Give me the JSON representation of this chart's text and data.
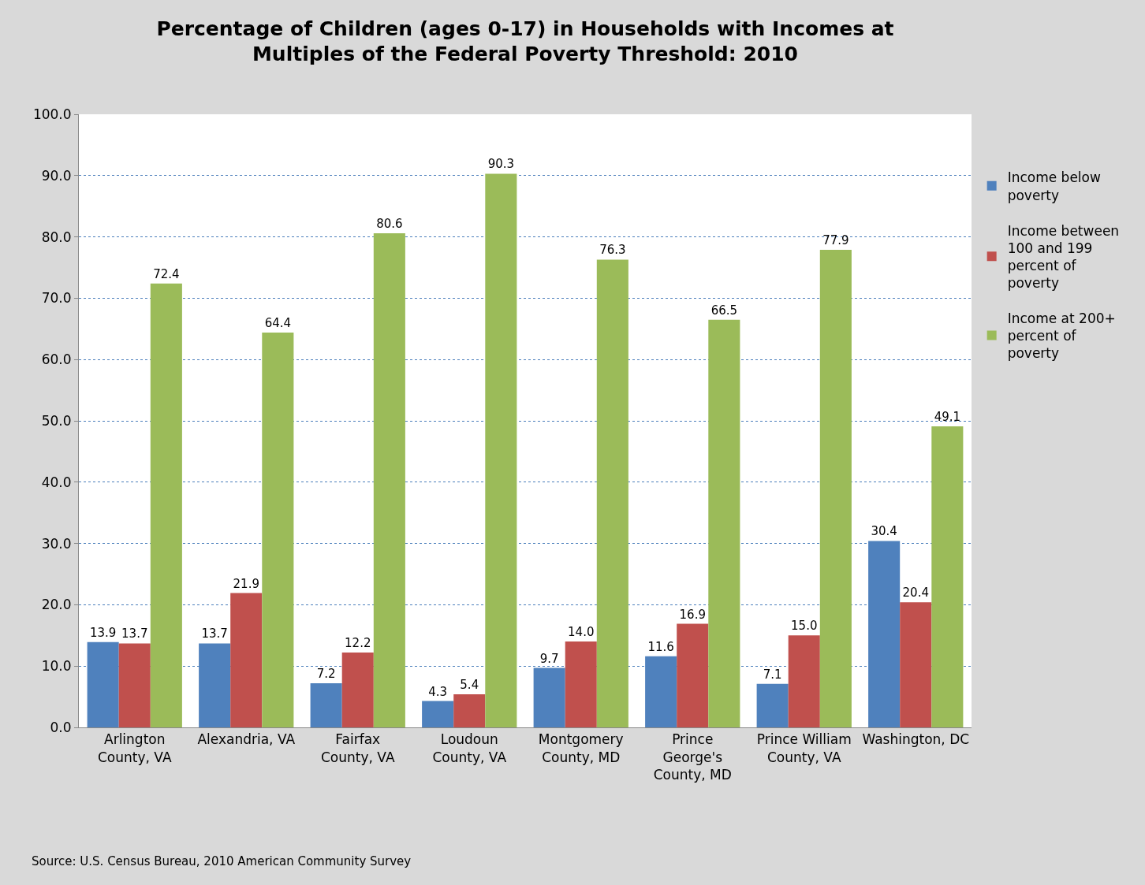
{
  "chart_data": {
    "type": "bar",
    "title": "Percentage of Children (ages 0-17) in Households with Incomes at Multiples of the Federal Poverty Threshold: 2010",
    "categories": [
      "Arlington County, VA",
      "Alexandria, VA",
      "Fairfax County, VA",
      "Loudoun County, VA",
      "Montgomery County, MD",
      "Prince George's County, MD",
      "Prince William County, VA",
      "Washington, DC"
    ],
    "series": [
      {
        "name": "Income below poverty",
        "color": "#4f81bd",
        "values": [
          13.9,
          13.7,
          7.2,
          4.3,
          9.7,
          11.6,
          7.1,
          30.4
        ],
        "value_labels": [
          "13.9",
          "13.7",
          "7.2",
          "4.3",
          "9.7",
          "11.6",
          "7.1",
          "30.4"
        ]
      },
      {
        "name": "Income between 100 and 199 percent of poverty",
        "color": "#c0504d",
        "values": [
          13.7,
          21.9,
          12.2,
          5.4,
          14.0,
          16.9,
          15.0,
          20.4
        ],
        "value_labels": [
          "13.7",
          "21.9",
          "12.2",
          "5.4",
          "14.0",
          "16.9",
          "15.0",
          "20.4"
        ]
      },
      {
        "name": "Income at 200+ percent of poverty",
        "color": "#9bbb59",
        "values": [
          72.4,
          64.4,
          80.6,
          90.3,
          76.3,
          66.5,
          77.9,
          49.1
        ],
        "value_labels": [
          "72.4",
          "64.4",
          "80.6",
          "90.3",
          "76.3",
          "66.5",
          "77.9",
          "49.1"
        ]
      }
    ],
    "ylim": [
      0,
      100
    ],
    "yticks": [
      {
        "value": 0,
        "label": "0.0"
      },
      {
        "value": 10,
        "label": "10.0"
      },
      {
        "value": 20,
        "label": "20.0"
      },
      {
        "value": 30,
        "label": "30.0"
      },
      {
        "value": 40,
        "label": "40.0"
      },
      {
        "value": 50,
        "label": "50.0"
      },
      {
        "value": 60,
        "label": "60.0"
      },
      {
        "value": 70,
        "label": "70.0"
      },
      {
        "value": 80,
        "label": "80.0"
      },
      {
        "value": 90,
        "label": "90.0"
      },
      {
        "value": 100,
        "label": "100.0"
      }
    ],
    "grid": "y",
    "legend": "right",
    "annotations": [
      "Source: U.S. Census Bureau, 2010 American Community Survey"
    ]
  }
}
